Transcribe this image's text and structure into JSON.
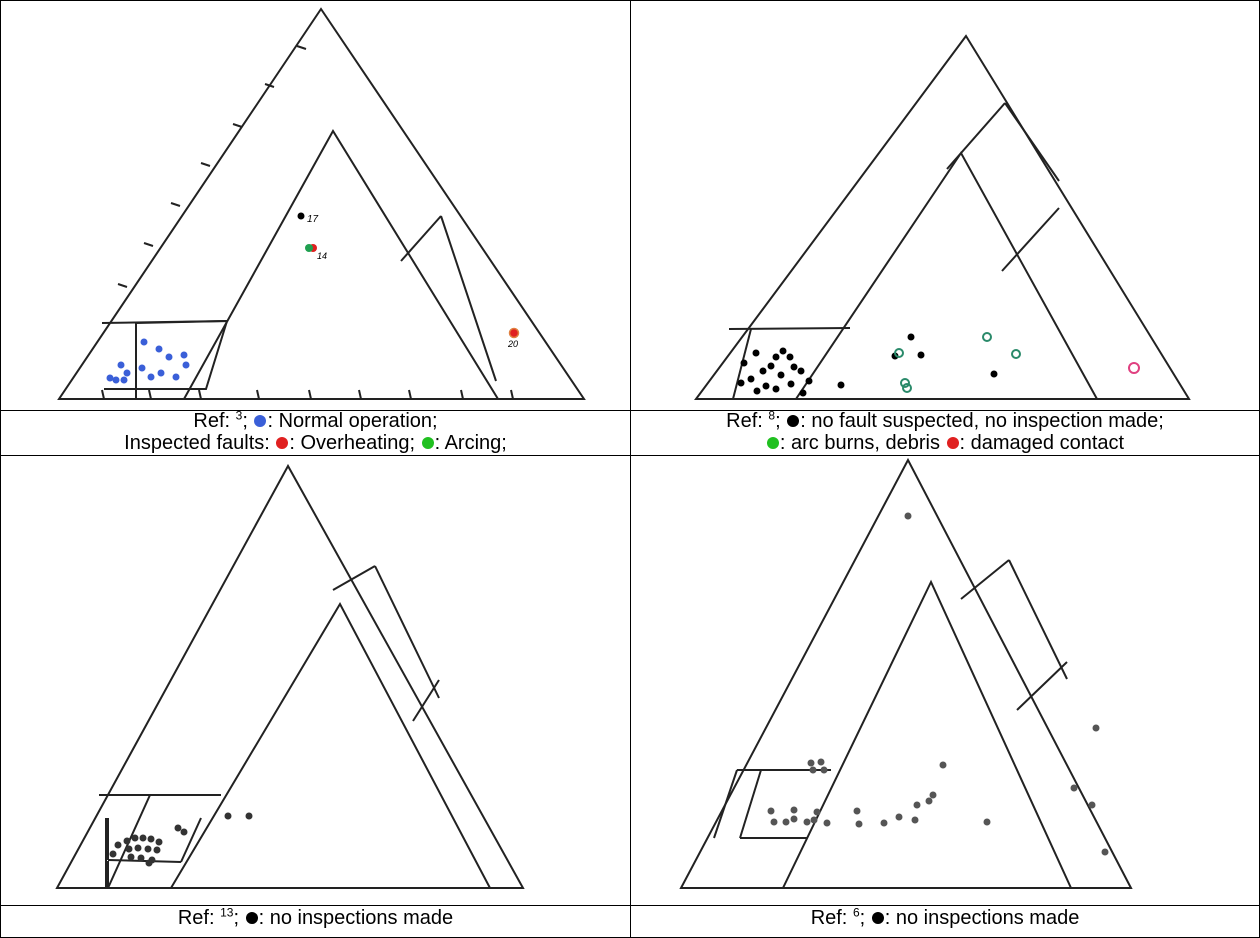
{
  "colors": {
    "normal": "#3a5fd8",
    "overheating": "#e02020",
    "arcing": "#20c020",
    "black": "#000000",
    "green_outline": "#2a8a6a",
    "pink_outline": "#e04080"
  },
  "captions": {
    "tl": {
      "ref_prefix": "Ref: ",
      "ref_num": "3",
      "line1_rest": "; ",
      "normal_label": ": Normal operation;",
      "line2_prefix": "Inspected faults: ",
      "overheating_label": ": Overheating; ",
      "arcing_label": ": Arcing;"
    },
    "tr": {
      "ref_prefix": "Ref: ",
      "ref_num": "8",
      "line1_rest": "; ",
      "black_label": ": no fault suspected, no inspection made;",
      "green_label": ": arc burns, debris ",
      "red_label": ": damaged contact"
    },
    "bl": {
      "ref_prefix": "Ref: ",
      "ref_num": "13",
      "sep": "; ",
      "label": ": no inspections made"
    },
    "br": {
      "ref_prefix": "Ref: ",
      "ref_num": "6",
      "sep": "; ",
      "label": ": no inspections made"
    }
  },
  "point_labels": {
    "p17": "17",
    "p14": "14",
    "p20": "20"
  }
}
